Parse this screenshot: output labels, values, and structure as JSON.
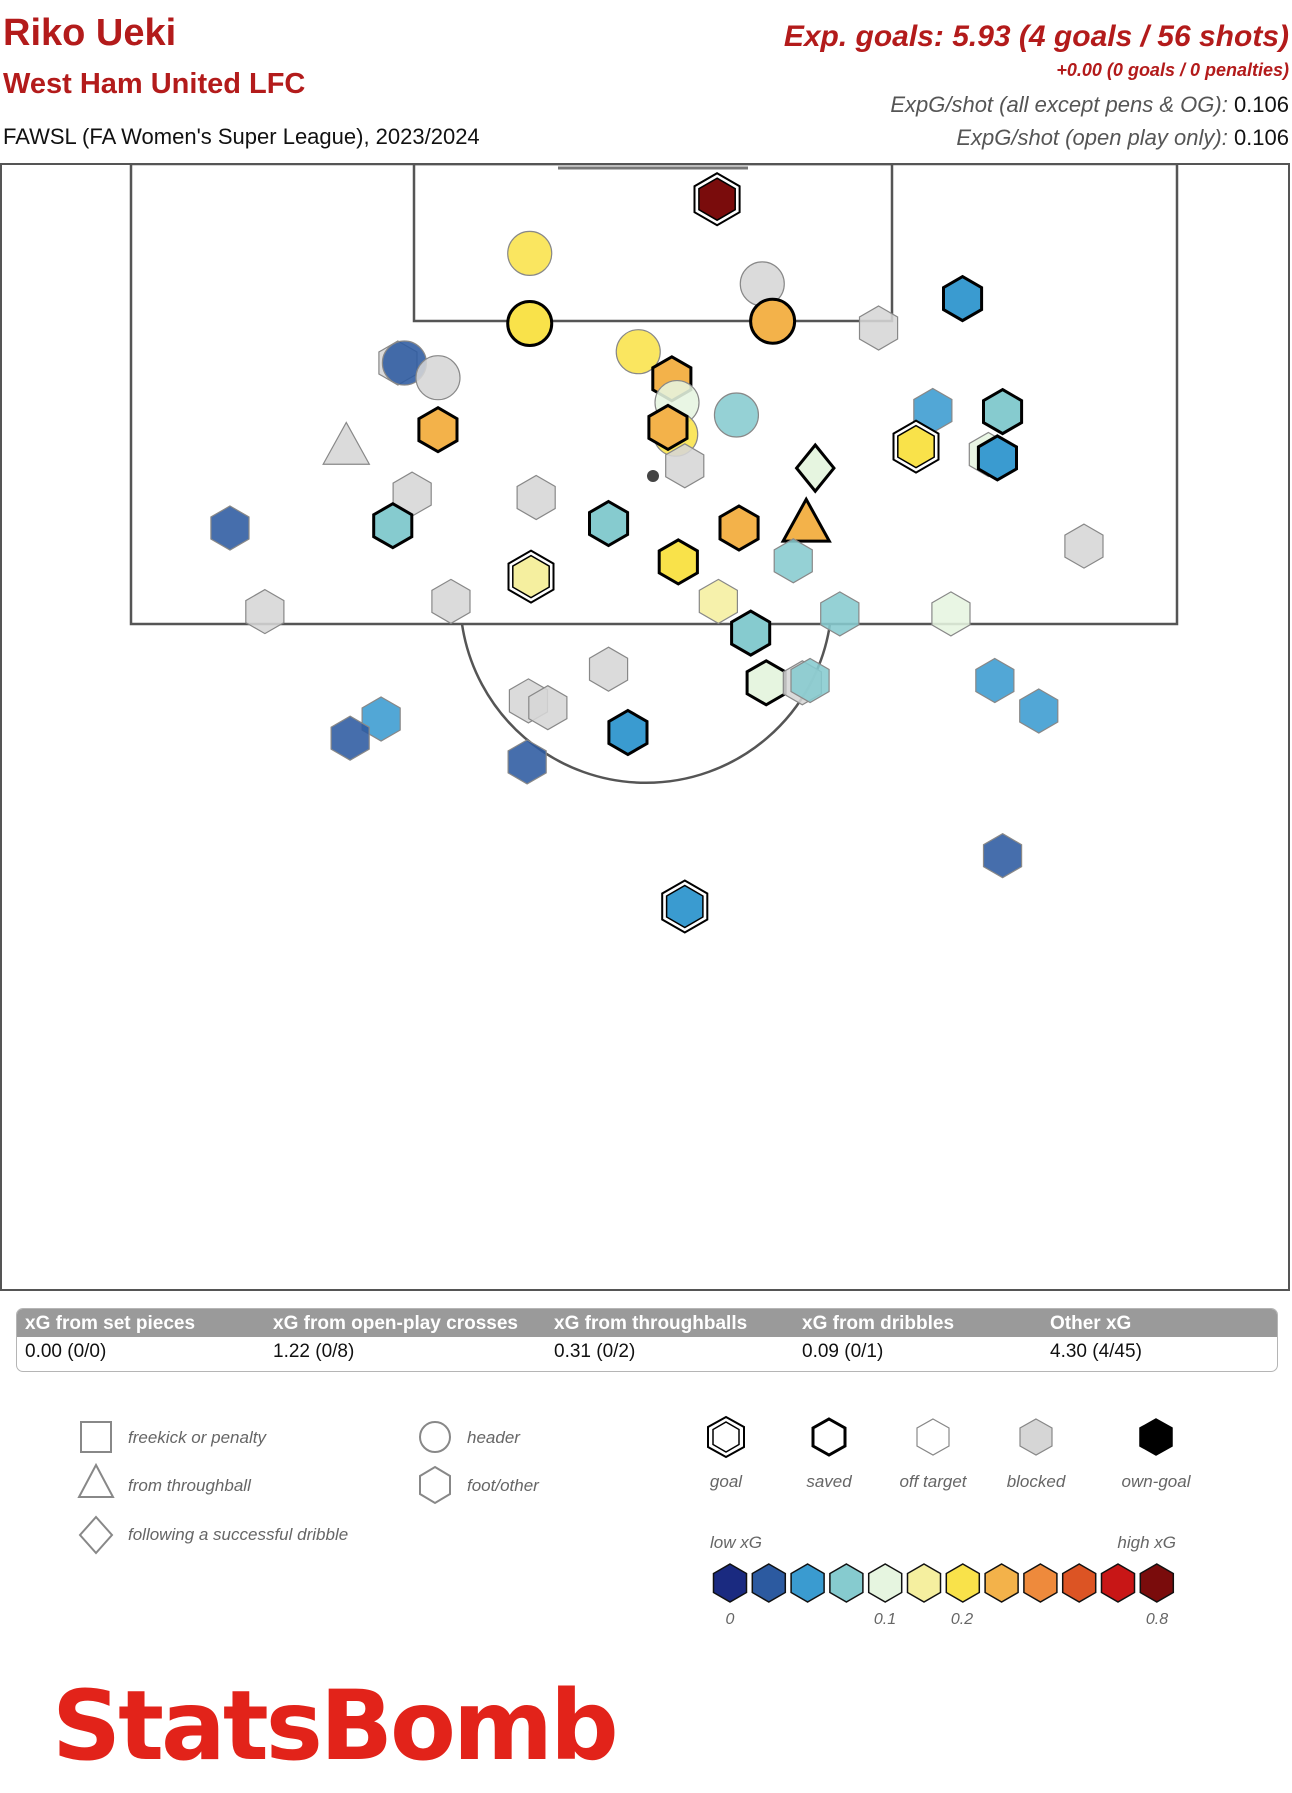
{
  "header": {
    "player": "Riko Ueki",
    "team": "West Ham United LFC",
    "competition": "FAWSL (FA Women's Super League), 2023/2024",
    "exp_goals": "Exp. goals: 5.93 (4 goals / 56 shots)",
    "penalties": "+0.00 (0 goals / 0 penalties)",
    "xg_shot_all_label": "ExpG/shot (all except pens & OG):",
    "xg_shot_all_value": "0.106",
    "xg_shot_open_label": "ExpG/shot (open play only):",
    "xg_shot_open_value": "0.106"
  },
  "colors": {
    "title_red": "#b31b1b",
    "scale": [
      "#1a2a80",
      "#2c5aa0",
      "#3a9bd0",
      "#86cbcf",
      "#e6f5e0",
      "#f5ef9f",
      "#f9e24a",
      "#f3b24a",
      "#ee8a3c",
      "#dc5424",
      "#c81616",
      "#7a0c0c"
    ],
    "blocked": "#d6d6d6"
  },
  "chart_data": {
    "type": "scatter",
    "x_unit": "normalized pitch width (0 = left, 1 = right)",
    "y_unit": "normalized half-pitch depth from goal line (0 = goal line)",
    "shots": [
      {
        "x": 0.555,
        "y": 0.032,
        "xg": 0.8,
        "outcome": "goal",
        "shape": "hex"
      },
      {
        "x": 0.41,
        "y": 0.08,
        "xg": 0.15,
        "outcome": "off",
        "shape": "circle"
      },
      {
        "x": 0.59,
        "y": 0.107,
        "xg": 0.0,
        "outcome": "blocked",
        "shape": "circle"
      },
      {
        "x": 0.745,
        "y": 0.12,
        "xg": 0.05,
        "outcome": "saved",
        "shape": "hex"
      },
      {
        "x": 0.41,
        "y": 0.142,
        "xg": 0.16,
        "outcome": "saved",
        "shape": "circle"
      },
      {
        "x": 0.598,
        "y": 0.14,
        "xg": 0.2,
        "outcome": "saved",
        "shape": "circle"
      },
      {
        "x": 0.68,
        "y": 0.146,
        "xg": 0.0,
        "outcome": "blocked",
        "shape": "hex"
      },
      {
        "x": 0.308,
        "y": 0.177,
        "xg": 0.0,
        "outcome": "blocked",
        "shape": "hex"
      },
      {
        "x": 0.313,
        "y": 0.177,
        "xg": 0.02,
        "outcome": "off",
        "shape": "circle"
      },
      {
        "x": 0.339,
        "y": 0.19,
        "xg": 0.0,
        "outcome": "blocked",
        "shape": "circle"
      },
      {
        "x": 0.494,
        "y": 0.167,
        "xg": 0.15,
        "outcome": "off",
        "shape": "circle"
      },
      {
        "x": 0.52,
        "y": 0.191,
        "xg": 0.2,
        "outcome": "saved",
        "shape": "hex"
      },
      {
        "x": 0.524,
        "y": 0.212,
        "xg": 0.08,
        "outcome": "off",
        "shape": "circle"
      },
      {
        "x": 0.57,
        "y": 0.223,
        "xg": 0.07,
        "outcome": "off",
        "shape": "circle"
      },
      {
        "x": 0.722,
        "y": 0.219,
        "xg": 0.04,
        "outcome": "off",
        "shape": "hex"
      },
      {
        "x": 0.776,
        "y": 0.22,
        "xg": 0.07,
        "outcome": "saved",
        "shape": "hex"
      },
      {
        "x": 0.523,
        "y": 0.24,
        "xg": 0.15,
        "outcome": "off",
        "shape": "circle"
      },
      {
        "x": 0.517,
        "y": 0.234,
        "xg": 0.2,
        "outcome": "saved",
        "shape": "hex"
      },
      {
        "x": 0.339,
        "y": 0.236,
        "xg": 0.2,
        "outcome": "saved",
        "shape": "hex"
      },
      {
        "x": 0.709,
        "y": 0.251,
        "xg": 0.18,
        "outcome": "goal",
        "shape": "hex"
      },
      {
        "x": 0.765,
        "y": 0.258,
        "xg": 0.08,
        "outcome": "off",
        "shape": "hex"
      },
      {
        "x": 0.772,
        "y": 0.261,
        "xg": 0.05,
        "outcome": "saved",
        "shape": "hex"
      },
      {
        "x": 0.268,
        "y": 0.252,
        "xg": 0.0,
        "outcome": "blocked",
        "shape": "triangle"
      },
      {
        "x": 0.53,
        "y": 0.268,
        "xg": 0.0,
        "outcome": "blocked",
        "shape": "hex"
      },
      {
        "x": 0.631,
        "y": 0.27,
        "xg": 0.09,
        "outcome": "saved",
        "shape": "diamond"
      },
      {
        "x": 0.319,
        "y": 0.293,
        "xg": 0.0,
        "outcome": "blocked",
        "shape": "hex"
      },
      {
        "x": 0.415,
        "y": 0.296,
        "xg": 0.0,
        "outcome": "blocked",
        "shape": "hex"
      },
      {
        "x": 0.178,
        "y": 0.323,
        "xg": 0.03,
        "outcome": "off",
        "shape": "hex"
      },
      {
        "x": 0.304,
        "y": 0.321,
        "xg": 0.07,
        "outcome": "saved",
        "shape": "hex"
      },
      {
        "x": 0.471,
        "y": 0.319,
        "xg": 0.07,
        "outcome": "saved",
        "shape": "hex"
      },
      {
        "x": 0.572,
        "y": 0.323,
        "xg": 0.2,
        "outcome": "saved",
        "shape": "hex"
      },
      {
        "x": 0.624,
        "y": 0.32,
        "xg": 0.2,
        "outcome": "saved",
        "shape": "triangle"
      },
      {
        "x": 0.839,
        "y": 0.339,
        "xg": 0.0,
        "outcome": "blocked",
        "shape": "hex"
      },
      {
        "x": 0.525,
        "y": 0.353,
        "xg": 0.18,
        "outcome": "saved",
        "shape": "hex"
      },
      {
        "x": 0.614,
        "y": 0.352,
        "xg": 0.06,
        "outcome": "off",
        "shape": "hex"
      },
      {
        "x": 0.411,
        "y": 0.366,
        "xg": 0.1,
        "outcome": "goal",
        "shape": "hex"
      },
      {
        "x": 0.556,
        "y": 0.388,
        "xg": 0.1,
        "outcome": "off",
        "shape": "hex"
      },
      {
        "x": 0.349,
        "y": 0.388,
        "xg": 0.0,
        "outcome": "blocked",
        "shape": "hex"
      },
      {
        "x": 0.205,
        "y": 0.397,
        "xg": 0.0,
        "outcome": "blocked",
        "shape": "hex"
      },
      {
        "x": 0.65,
        "y": 0.399,
        "xg": 0.06,
        "outcome": "off",
        "shape": "hex"
      },
      {
        "x": 0.736,
        "y": 0.399,
        "xg": 0.08,
        "outcome": "off",
        "shape": "hex"
      },
      {
        "x": 0.581,
        "y": 0.416,
        "xg": 0.07,
        "outcome": "saved",
        "shape": "hex"
      },
      {
        "x": 0.471,
        "y": 0.448,
        "xg": 0.0,
        "outcome": "blocked",
        "shape": "hex"
      },
      {
        "x": 0.593,
        "y": 0.46,
        "xg": 0.08,
        "outcome": "saved",
        "shape": "hex"
      },
      {
        "x": 0.621,
        "y": 0.46,
        "xg": 0.0,
        "outcome": "blocked",
        "shape": "hex"
      },
      {
        "x": 0.627,
        "y": 0.458,
        "xg": 0.06,
        "outcome": "off",
        "shape": "hex"
      },
      {
        "x": 0.77,
        "y": 0.458,
        "xg": 0.04,
        "outcome": "off",
        "shape": "hex"
      },
      {
        "x": 0.804,
        "y": 0.485,
        "xg": 0.04,
        "outcome": "off",
        "shape": "hex"
      },
      {
        "x": 0.409,
        "y": 0.476,
        "xg": 0.0,
        "outcome": "blocked",
        "shape": "hex"
      },
      {
        "x": 0.424,
        "y": 0.482,
        "xg": 0.0,
        "outcome": "blocked",
        "shape": "hex"
      },
      {
        "x": 0.295,
        "y": 0.492,
        "xg": 0.05,
        "outcome": "off",
        "shape": "hex"
      },
      {
        "x": 0.271,
        "y": 0.509,
        "xg": 0.02,
        "outcome": "off",
        "shape": "hex"
      },
      {
        "x": 0.486,
        "y": 0.504,
        "xg": 0.04,
        "outcome": "saved",
        "shape": "hex"
      },
      {
        "x": 0.408,
        "y": 0.53,
        "xg": 0.03,
        "outcome": "off",
        "shape": "hex"
      },
      {
        "x": 0.776,
        "y": 0.613,
        "xg": 0.02,
        "outcome": "off",
        "shape": "hex"
      },
      {
        "x": 0.53,
        "y": 0.658,
        "xg": 0.04,
        "outcome": "goal",
        "shape": "hex"
      }
    ]
  },
  "table": {
    "headers": [
      "xG from set pieces",
      "xG from open-play crosses",
      "xG from throughballs",
      "xG from dribbles",
      "Other xG"
    ],
    "values": [
      "0.00 (0/0)",
      "1.22 (0/8)",
      "0.31 (0/2)",
      "0.09 (0/1)",
      "4.30 (4/45)"
    ]
  },
  "legend": {
    "shapes": [
      {
        "shape": "square",
        "label": "freekick or penalty"
      },
      {
        "shape": "triangle",
        "label": "from throughball"
      },
      {
        "shape": "diamond",
        "label": "following a successful dribble"
      },
      {
        "shape": "circle",
        "label": "header"
      },
      {
        "shape": "hex",
        "label": "foot/other"
      }
    ],
    "outcomes": [
      "goal",
      "saved",
      "off target",
      "blocked",
      "own-goal"
    ],
    "low_xg": "low xG",
    "high_xg": "high xG",
    "scale_ticks": [
      "0",
      "0.1",
      "0.2",
      "0.8"
    ]
  },
  "brand": "StatsBomb"
}
